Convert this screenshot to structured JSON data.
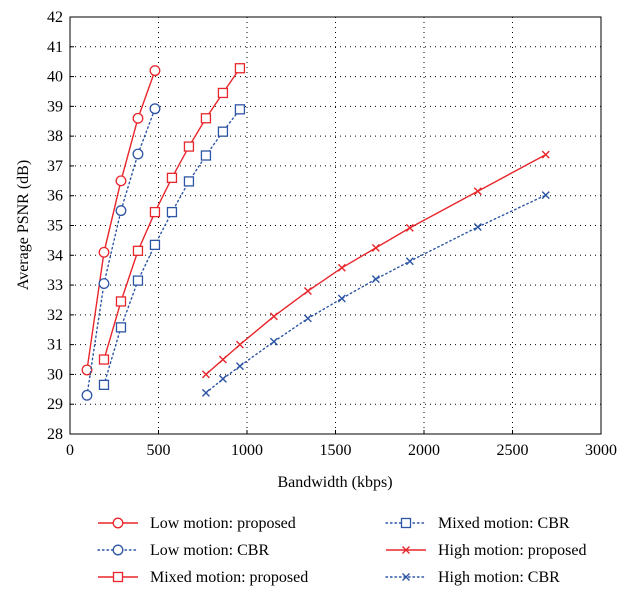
{
  "chart_data": {
    "type": "line",
    "xlabel": "Bandwidth (kbps)",
    "ylabel": "Average PSNR (dB)",
    "xlim": [
      0,
      3000
    ],
    "ylim": [
      28,
      42
    ],
    "xticks": [
      0,
      500,
      1000,
      1500,
      2000,
      2500,
      3000
    ],
    "yticks": [
      28,
      29,
      30,
      31,
      32,
      33,
      34,
      35,
      36,
      37,
      38,
      39,
      40,
      41,
      42
    ],
    "grid": true,
    "legend_position": "bottom",
    "series": [
      {
        "name": "Low motion: proposed",
        "color": "#e8262b",
        "line": "solid",
        "marker": "circle",
        "x": [
          96,
          192,
          288,
          384,
          480
        ],
        "y": [
          30.15,
          34.1,
          36.5,
          38.6,
          40.2
        ]
      },
      {
        "name": "Low motion: CBR",
        "color": "#2d55a5",
        "line": "dotted",
        "marker": "circle",
        "x": [
          96,
          192,
          288,
          384,
          480
        ],
        "y": [
          29.3,
          33.05,
          35.5,
          37.4,
          38.92
        ]
      },
      {
        "name": "Mixed motion: proposed",
        "color": "#e8262b",
        "line": "solid",
        "marker": "square",
        "x": [
          192,
          288,
          384,
          480,
          576,
          672,
          768,
          864,
          960
        ],
        "y": [
          30.5,
          32.45,
          34.15,
          35.45,
          36.6,
          37.65,
          38.6,
          39.45,
          40.28
        ]
      },
      {
        "name": "Mixed motion: CBR",
        "color": "#2d55a5",
        "line": "dotted",
        "marker": "square",
        "x": [
          192,
          288,
          384,
          480,
          576,
          672,
          768,
          864,
          960
        ],
        "y": [
          29.65,
          31.58,
          33.15,
          34.35,
          35.45,
          36.48,
          37.35,
          38.15,
          38.9
        ]
      },
      {
        "name": "High motion: proposed",
        "color": "#e8262b",
        "line": "solid",
        "marker": "x",
        "x": [
          768,
          864,
          960,
          1152,
          1344,
          1536,
          1728,
          1920,
          2304,
          2688
        ],
        "y": [
          30.0,
          30.5,
          31.0,
          31.95,
          32.8,
          33.58,
          34.25,
          34.92,
          36.15,
          37.38
        ]
      },
      {
        "name": "High motion: CBR",
        "color": "#2d55a5",
        "line": "dotted",
        "marker": "x",
        "x": [
          768,
          864,
          960,
          1152,
          1344,
          1536,
          1728,
          1920,
          2304,
          2688
        ],
        "y": [
          29.38,
          29.85,
          30.28,
          31.1,
          31.88,
          32.55,
          33.2,
          33.8,
          34.95,
          36.02
        ]
      }
    ]
  }
}
